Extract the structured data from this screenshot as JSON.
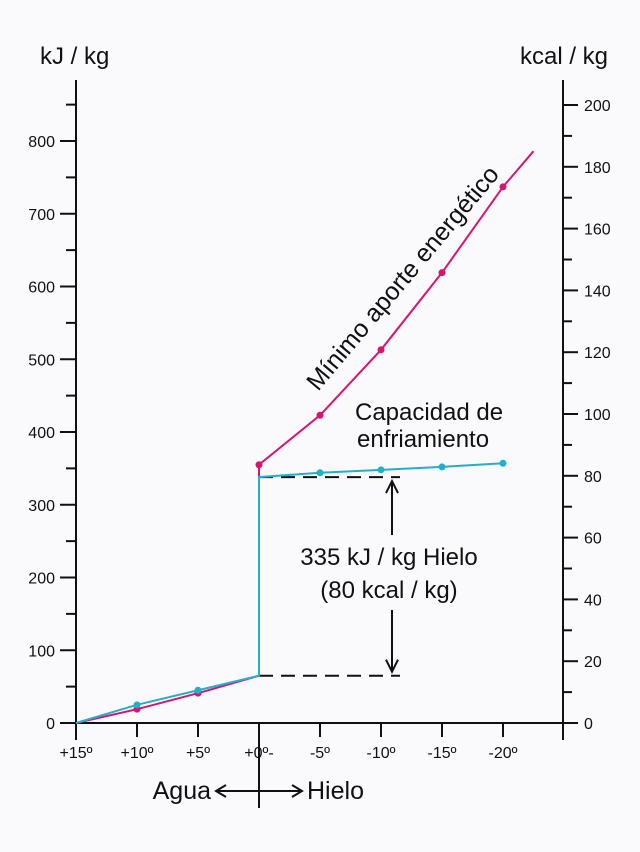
{
  "chart_data": {
    "type": "line",
    "ylabel_left": "kJ / kg",
    "ylabel_right": "kcal / kg",
    "x_ticks": [
      "+15º",
      "+10º",
      "+5º",
      "+0º-",
      "-5º",
      "-10º",
      "-15º",
      "-20º"
    ],
    "x_values": [
      15,
      10,
      5,
      0,
      -5,
      -10,
      -15,
      -20
    ],
    "xlim": [
      15,
      -20
    ],
    "ylim_left": [
      0,
      800
    ],
    "ylim_right": [
      0,
      200
    ],
    "y_ticks_left": [
      "0",
      "100",
      "200",
      "300",
      "400",
      "500",
      "600",
      "700",
      "800"
    ],
    "y_ticks_right": [
      "0",
      "20",
      "40",
      "60",
      "80",
      "100",
      "120",
      "140",
      "160",
      "180",
      "200"
    ],
    "grid": false,
    "series": [
      {
        "name": "Mínimo aporte energético",
        "color": "#d81470",
        "points": [
          [
            15,
            0
          ],
          [
            10,
            19
          ],
          [
            5,
            41
          ],
          [
            0,
            65
          ],
          [
            0,
            355
          ],
          [
            -5,
            423
          ],
          [
            -10,
            513
          ],
          [
            -15,
            619
          ],
          [
            -20,
            737
          ],
          [
            -22.5,
            786
          ]
        ],
        "markers": [
          [
            10,
            19
          ],
          [
            5,
            41
          ],
          [
            0,
            355
          ],
          [
            -5,
            423
          ],
          [
            -10,
            513
          ],
          [
            -15,
            619
          ],
          [
            -20,
            737
          ]
        ]
      },
      {
        "name": "Capacidad de enfriamiento",
        "color": "#22b0c8",
        "points": [
          [
            15,
            0
          ],
          [
            10,
            25
          ],
          [
            5,
            45
          ],
          [
            0,
            65
          ],
          [
            0,
            338
          ],
          [
            -5,
            344
          ],
          [
            -10,
            348
          ],
          [
            -15,
            352
          ],
          [
            -20,
            357
          ]
        ],
        "markers": [
          [
            10,
            25
          ],
          [
            5,
            45
          ],
          [
            -5,
            344
          ],
          [
            -10,
            348
          ],
          [
            -15,
            352
          ],
          [
            -20,
            357
          ]
        ]
      }
    ],
    "annotations": {
      "label_series1": "Mínimo aporte energético",
      "label_series2_line1": "Capacidad de",
      "label_series2_line2": "enfriamiento",
      "latent_line1": "335 kJ / kg Hielo",
      "latent_line2": "(80 kcal / kg)",
      "latent_range": [
        65,
        338
      ],
      "phase_left": "Agua",
      "phase_right": "Hielo"
    }
  }
}
